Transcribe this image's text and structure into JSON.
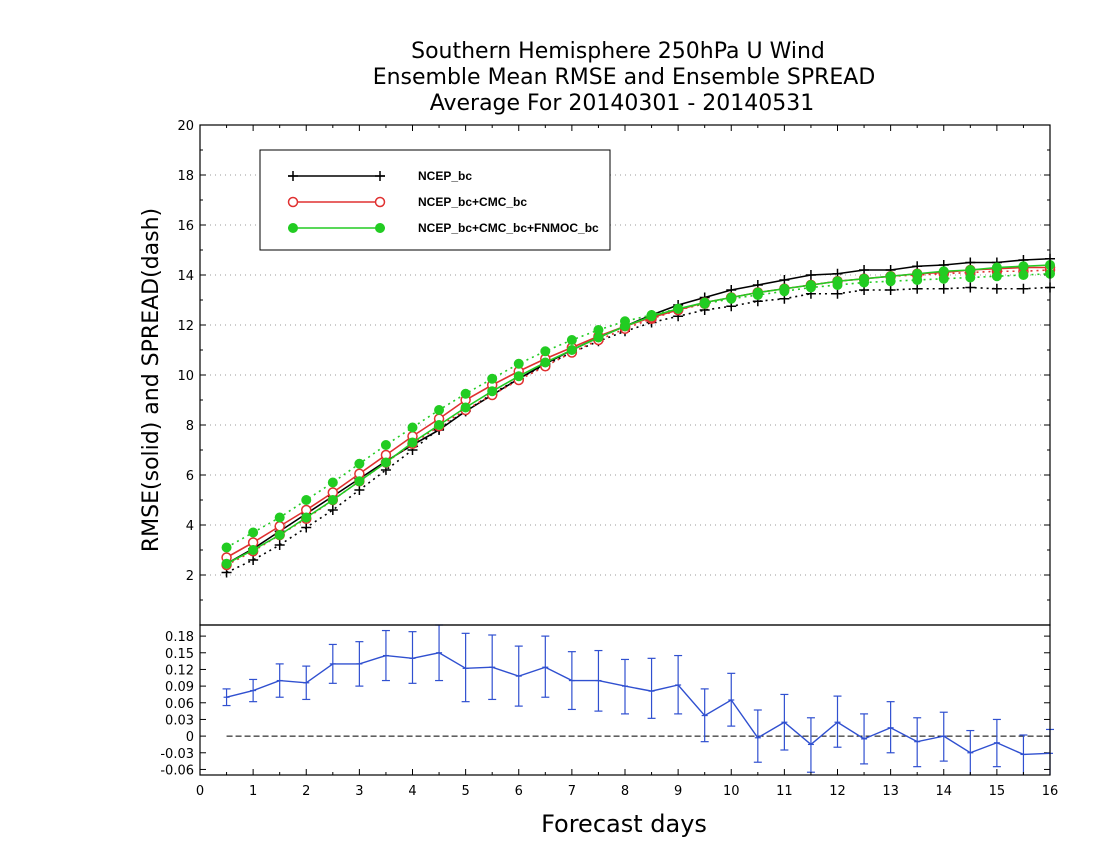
{
  "chart_data": [
    {
      "type": "line",
      "title": [
        "Southern Hemisphere 250hPa U Wind",
        "Ensemble Mean RMSE and Ensemble SPREAD",
        "Average For 20140301 - 20140531"
      ],
      "xlabel": "Forecast days",
      "ylabel": "RMSE(solid) and SPREAD(dash)",
      "xlim": [
        0,
        16
      ],
      "ylim": [
        0,
        20
      ],
      "xticks": [
        "0",
        "1",
        "2",
        "3",
        "4",
        "5",
        "6",
        "7",
        "8",
        "9",
        "10",
        "11",
        "12",
        "13",
        "14",
        "15",
        "16"
      ],
      "yticks": [
        "2",
        "4",
        "6",
        "8",
        "10",
        "12",
        "14",
        "16",
        "18",
        "20"
      ],
      "grid": "dotted horizontal",
      "legend_position": "top-left",
      "x": [
        0.5,
        1,
        1.5,
        2,
        2.5,
        3,
        3.5,
        4,
        4.5,
        5,
        5.5,
        6,
        6.5,
        7,
        7.5,
        8,
        8.5,
        9,
        9.5,
        10,
        10.5,
        11,
        11.5,
        12,
        12.5,
        13,
        13.5,
        14,
        14.5,
        15,
        15.5,
        16
      ],
      "series": [
        {
          "name": "NCEP_bc",
          "color": "#000000",
          "marker": "plus",
          "rmse": [
            2.45,
            3.05,
            3.75,
            4.45,
            5.15,
            5.85,
            6.55,
            7.2,
            7.8,
            8.55,
            9.2,
            9.85,
            10.45,
            11.0,
            11.5,
            11.95,
            12.4,
            12.8,
            13.1,
            13.4,
            13.6,
            13.8,
            14.0,
            14.05,
            14.2,
            14.2,
            14.35,
            14.4,
            14.5,
            14.5,
            14.6,
            14.65
          ],
          "spread": [
            2.1,
            2.6,
            3.2,
            3.9,
            4.6,
            5.4,
            6.2,
            7.0,
            7.85,
            8.55,
            9.25,
            9.85,
            10.4,
            10.9,
            11.35,
            11.75,
            12.1,
            12.35,
            12.6,
            12.75,
            12.95,
            13.05,
            13.25,
            13.25,
            13.4,
            13.4,
            13.45,
            13.45,
            13.5,
            13.45,
            13.45,
            13.5
          ]
        },
        {
          "name": "NCEP_bc+CMC_bc",
          "color": "#e03030",
          "marker": "open-circle",
          "rmse": [
            2.7,
            3.3,
            3.95,
            4.6,
            5.3,
            6.05,
            6.8,
            7.55,
            8.25,
            9.0,
            9.6,
            10.15,
            10.65,
            11.1,
            11.55,
            11.95,
            12.3,
            12.6,
            12.9,
            13.1,
            13.3,
            13.45,
            13.6,
            13.75,
            13.85,
            13.95,
            14.05,
            14.1,
            14.2,
            14.25,
            14.3,
            14.3
          ],
          "spread": [
            2.4,
            2.95,
            3.6,
            4.25,
            5.0,
            5.75,
            6.5,
            7.25,
            7.95,
            8.6,
            9.2,
            9.8,
            10.35,
            10.9,
            11.4,
            11.85,
            12.25,
            12.6,
            12.85,
            13.1,
            13.3,
            13.45,
            13.6,
            13.75,
            13.85,
            13.95,
            14.0,
            14.05,
            14.1,
            14.15,
            14.15,
            14.2
          ]
        },
        {
          "name": "NCEP_bc+CMC_bc+FNMOC_bc",
          "color": "#22cc22",
          "marker": "filled-circle",
          "rmse": [
            2.45,
            3.0,
            3.6,
            4.3,
            5.0,
            5.75,
            6.5,
            7.3,
            8.0,
            8.7,
            9.35,
            9.95,
            10.5,
            11.0,
            11.5,
            11.95,
            12.35,
            12.65,
            12.9,
            13.1,
            13.3,
            13.45,
            13.6,
            13.75,
            13.85,
            13.95,
            14.05,
            14.15,
            14.2,
            14.3,
            14.35,
            14.4
          ],
          "spread": [
            3.1,
            3.7,
            4.3,
            5.0,
            5.7,
            6.45,
            7.2,
            7.9,
            8.6,
            9.25,
            9.85,
            10.45,
            10.95,
            11.4,
            11.8,
            12.15,
            12.4,
            12.65,
            12.85,
            13.05,
            13.2,
            13.35,
            13.5,
            13.6,
            13.7,
            13.75,
            13.8,
            13.85,
            13.9,
            13.95,
            14.0,
            14.05
          ]
        }
      ]
    },
    {
      "type": "line",
      "xlim": [
        0,
        16
      ],
      "ylim": [
        -0.07,
        0.2
      ],
      "yticks": [
        "0.18",
        "0.15",
        "0.12",
        "0.09",
        "0.06",
        "0.03",
        "0",
        "-0.03",
        "-0.06"
      ],
      "zero_line": "dashed",
      "series": [
        {
          "color": "#3050d0",
          "marker": "error-bar",
          "x": [
            0.5,
            1,
            1.5,
            2,
            2.5,
            3,
            3.5,
            4,
            4.5,
            5,
            5.5,
            6,
            6.5,
            7,
            7.5,
            8,
            8.5,
            9,
            9.5,
            10,
            10.5,
            11,
            11.5,
            12,
            12.5,
            13,
            13.5,
            14,
            14.5,
            15,
            15.5,
            16
          ],
          "values": [
            0.07,
            0.082,
            0.1,
            0.096,
            0.13,
            0.13,
            0.145,
            0.14,
            0.15,
            0.122,
            0.124,
            0.108,
            0.124,
            0.1,
            0.1,
            0.09,
            0.081,
            0.092,
            0.037,
            0.065,
            -0.003,
            0.025,
            -0.015,
            0.025,
            -0.005,
            0.015,
            -0.01,
            0.0,
            -0.03,
            -0.012,
            -0.033,
            -0.031
          ],
          "err_low": [
            0.055,
            0.062,
            0.07,
            0.066,
            0.095,
            0.09,
            0.1,
            0.095,
            0.1,
            0.062,
            0.066,
            0.054,
            0.07,
            0.048,
            0.045,
            0.04,
            0.032,
            0.04,
            -0.01,
            0.018,
            -0.047,
            -0.025,
            -0.065,
            -0.02,
            -0.05,
            -0.03,
            -0.055,
            -0.045,
            -0.075,
            -0.055,
            -0.075,
            -0.075
          ],
          "err_high": [
            0.085,
            0.102,
            0.13,
            0.126,
            0.165,
            0.17,
            0.19,
            0.188,
            0.2,
            0.185,
            0.182,
            0.162,
            0.18,
            0.152,
            0.154,
            0.138,
            0.14,
            0.145,
            0.085,
            0.113,
            0.047,
            0.075,
            0.033,
            0.072,
            0.04,
            0.062,
            0.033,
            0.043,
            0.01,
            0.03,
            0.002,
            0.012
          ]
        }
      ]
    }
  ]
}
